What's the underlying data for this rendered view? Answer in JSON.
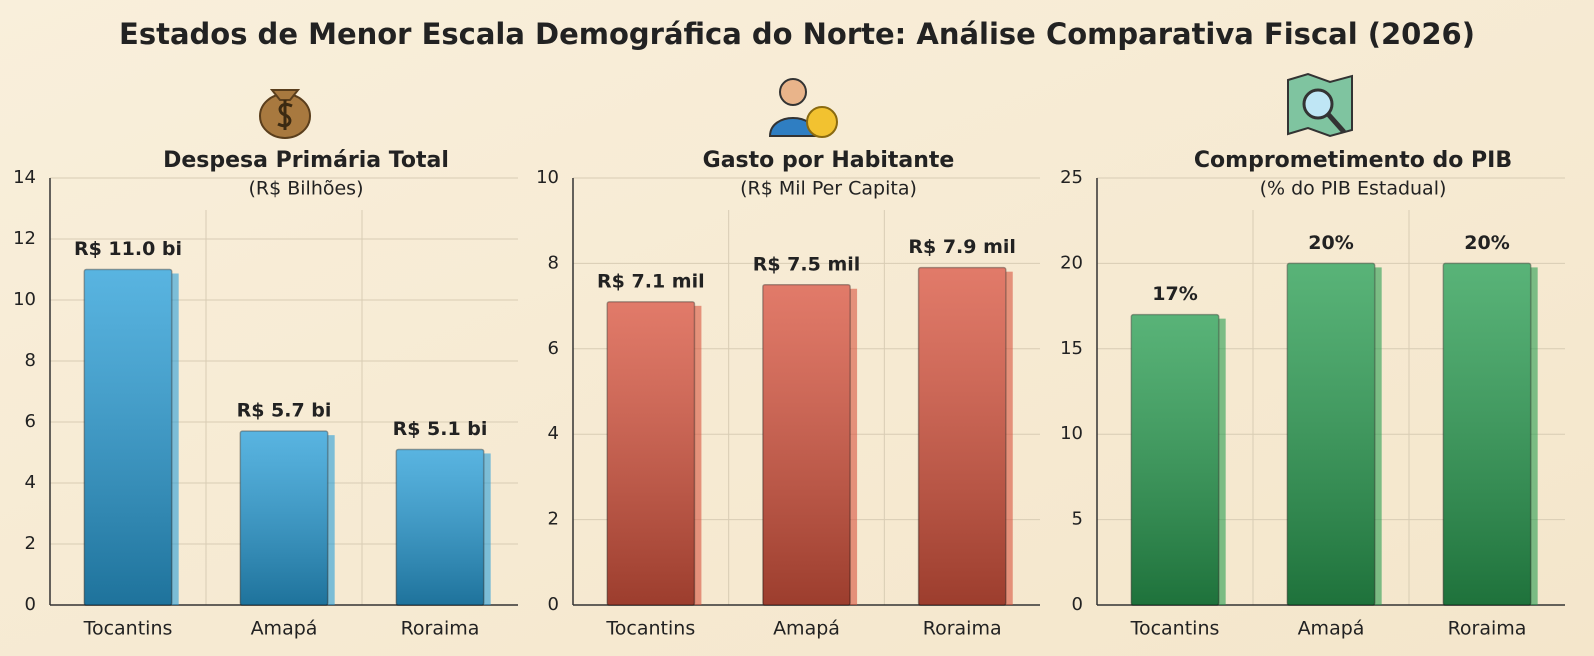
{
  "title": "Estados de Menor Escala Demográfica do Norte: Análise Comparativa Fiscal (2026)",
  "chart_data": [
    {
      "type": "bar",
      "title": "Despesa Primária Total",
      "subtitle": "(R$ Bilhões)",
      "categories": [
        "Tocantins",
        "Amapá",
        "Roraima"
      ],
      "values": [
        11.0,
        5.7,
        5.1
      ],
      "value_labels": [
        "R$ 11.0 bi",
        "R$ 5.7 bi",
        "R$ 5.1 bi"
      ],
      "color": "#2a9fd8",
      "ylim": [
        0,
        14
      ],
      "yticks": [
        0,
        2,
        4,
        6,
        8,
        10,
        12,
        14
      ],
      "grid": true
    },
    {
      "type": "bar",
      "title": "Gasto por Habitante",
      "subtitle": "(R$ Mil Per Capita)",
      "categories": [
        "Tocantins",
        "Amapá",
        "Roraima"
      ],
      "values": [
        7.1,
        7.5,
        7.9
      ],
      "value_labels": [
        "R$ 7.1 mil",
        "R$ 7.5 mil",
        "R$ 7.9 mil"
      ],
      "color": "#d9553f",
      "ylim": [
        0,
        10
      ],
      "yticks": [
        0,
        2,
        4,
        6,
        8,
        10
      ],
      "grid": true
    },
    {
      "type": "bar",
      "title": "Comprometimento do PIB",
      "subtitle": "(% do PIB Estadual)",
      "categories": [
        "Tocantins",
        "Amapá",
        "Roraima"
      ],
      "values": [
        17,
        20,
        20
      ],
      "value_labels": [
        "17%",
        "20%",
        "20%"
      ],
      "color": "#2a9e52",
      "ylim": [
        0,
        25
      ],
      "yticks": [
        0,
        5,
        10,
        15,
        20,
        25
      ],
      "grid": true
    }
  ]
}
